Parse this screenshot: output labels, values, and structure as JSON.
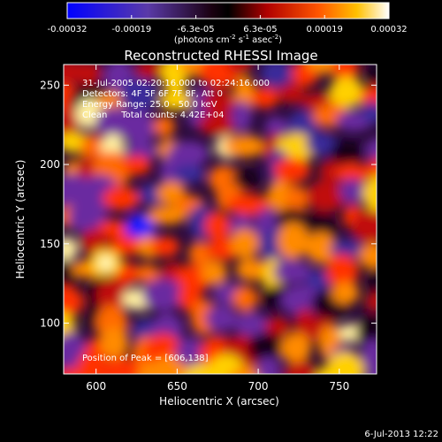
{
  "chart_data": {
    "type": "heatmap",
    "title": "Reconstructed RHESSI Image",
    "xlabel": "Heliocentric X (arcsec)",
    "ylabel": "Heliocentric Y (arcsec)",
    "xlim": [
      580,
      773
    ],
    "ylim": [
      68,
      263
    ],
    "xticks": [
      "600",
      "650",
      "700",
      "750"
    ],
    "xtick_values": [
      600,
      650,
      700,
      750
    ],
    "yticks": [
      "100",
      "150",
      "200",
      "250"
    ],
    "ytick_values": [
      100,
      150,
      200,
      250
    ],
    "colorbar": {
      "ticks": [
        "-0.00032",
        "-0.00019",
        "-6.3e-05",
        "6.3e-05",
        "0.00019",
        "0.00032"
      ],
      "range": [
        -0.00032,
        0.00032
      ],
      "units_main": "(photons cm",
      "units_sup1": "-2",
      "units_mid": " s",
      "units_sup2": "-1",
      "units_mid2": " asec",
      "units_sup3": "-2",
      "units_end": ")"
    },
    "annotations": {
      "time_range": "31-Jul-2005 02:20:16.000 to 02:24:16.000",
      "detectors": "Detectors: 4F 5F 6F 7F 8F, Att 0",
      "energy": "Energy Range: 25.0 - 50.0 keV",
      "clean": "Clean     Total counts: 4.42E+04",
      "peak": "Position of Peak = [606,138]"
    },
    "peak": {
      "x": 606,
      "y": 138
    }
  },
  "footer": {
    "timestamp": "6-Jul-2013 12:22"
  }
}
